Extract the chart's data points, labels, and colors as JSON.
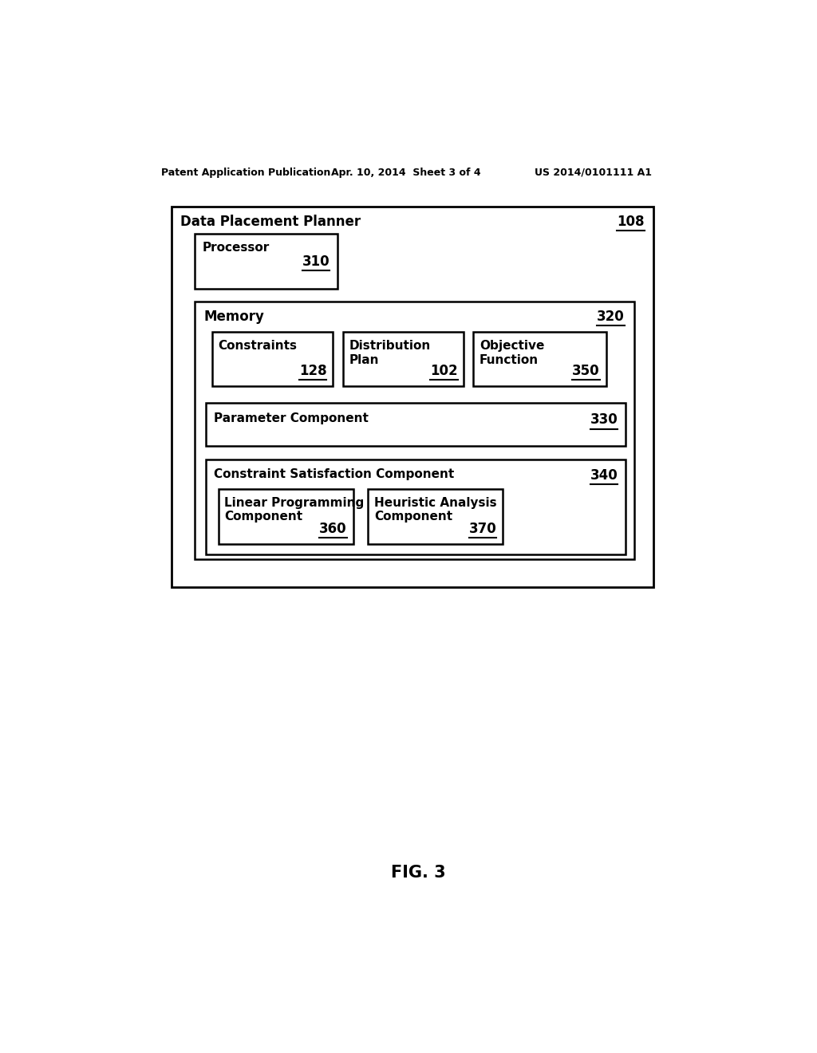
{
  "header_left": "Patent Application Publication",
  "header_mid": "Apr. 10, 2014  Sheet 3 of 4",
  "header_right": "US 2014/0101111 A1",
  "footer_label": "FIG. 3",
  "outer_box_label": "Data Placement Planner",
  "outer_box_ref": "108",
  "processor_label": "Processor",
  "processor_ref": "310",
  "memory_label": "Memory",
  "memory_ref": "320",
  "constraints_label": "Constraints",
  "constraints_ref": "128",
  "dist_plan_label": "Distribution\nPlan",
  "dist_plan_ref": "102",
  "obj_func_label": "Objective\nFunction",
  "obj_func_ref": "350",
  "param_comp_label": "Parameter Component",
  "param_comp_ref": "330",
  "csc_label": "Constraint Satisfaction Component",
  "csc_ref": "340",
  "lp_label": "Linear Programming\nComponent",
  "lp_ref": "360",
  "ha_label": "Heuristic Analysis\nComponent",
  "ha_ref": "370",
  "bg_color": "#ffffff",
  "box_edge_color": "#000000",
  "text_color": "#000000"
}
